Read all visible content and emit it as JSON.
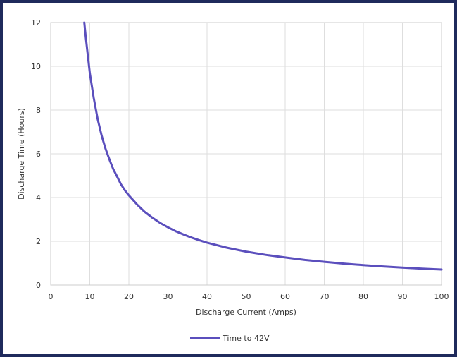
{
  "chart_data": {
    "type": "line",
    "title": "",
    "xlabel": "Discharge Current (Amps)",
    "ylabel": "Discharge Time (Hours)",
    "xlim": [
      0,
      100
    ],
    "ylim": [
      0,
      12
    ],
    "x_ticks": [
      0,
      10,
      20,
      30,
      40,
      50,
      60,
      70,
      80,
      90,
      100
    ],
    "y_ticks": [
      0,
      2,
      4,
      6,
      8,
      10,
      12
    ],
    "grid": true,
    "legend_position": "bottom-center",
    "series": [
      {
        "name": "Time to 42V",
        "color": "#5b4fbd",
        "x": [
          8.6,
          9,
          10,
          11,
          12,
          13,
          14,
          15,
          16,
          17,
          18,
          19,
          20,
          22,
          24,
          26,
          28,
          30,
          32,
          34,
          36,
          38,
          40,
          45,
          50,
          55,
          60,
          65,
          70,
          75,
          80,
          85,
          90,
          95,
          100
        ],
        "y": [
          12.0,
          11.3,
          9.7,
          8.55,
          7.6,
          6.85,
          6.25,
          5.75,
          5.3,
          4.95,
          4.6,
          4.33,
          4.1,
          3.7,
          3.35,
          3.08,
          2.84,
          2.64,
          2.46,
          2.31,
          2.17,
          2.05,
          1.94,
          1.71,
          1.53,
          1.38,
          1.26,
          1.15,
          1.06,
          0.98,
          0.91,
          0.85,
          0.8,
          0.75,
          0.71
        ]
      }
    ]
  }
}
